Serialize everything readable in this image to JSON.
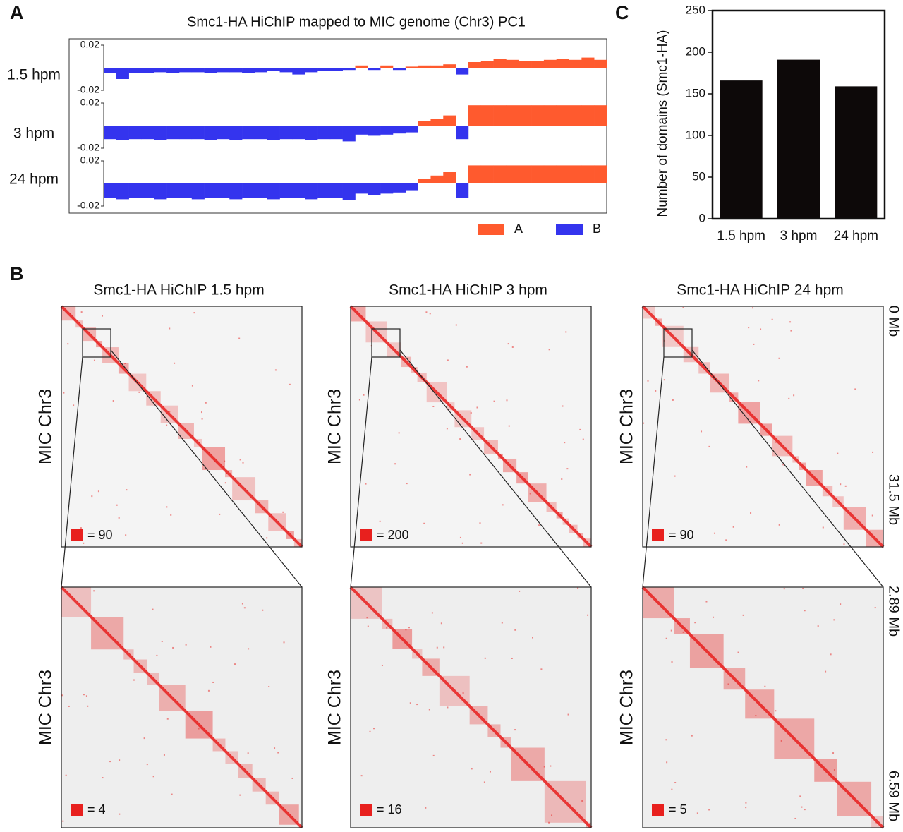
{
  "panel_labels": {
    "a": "A",
    "b": "B",
    "c": "C"
  },
  "chart_data": [
    {
      "type": "track",
      "title": "Smc1-HA HiChIP mapped to MIC genome (Chr3) PC1",
      "tracks": [
        {
          "name": "1.5 hpm",
          "values": [
            -0.005,
            -0.01,
            -0.005,
            -0.005,
            -0.004,
            -0.005,
            -0.004,
            -0.004,
            -0.005,
            -0.004,
            -0.004,
            -0.005,
            -0.004,
            -0.003,
            -0.004,
            -0.006,
            -0.004,
            -0.003,
            -0.003,
            -0.002,
            0.002,
            -0.002,
            0.002,
            -0.002,
            0.001,
            0.002,
            0.002,
            0.003,
            -0.006,
            0.005,
            0.006,
            0.008,
            0.007,
            0.006,
            0.006,
            0.007,
            0.008,
            0.007,
            0.009,
            0.007
          ]
        },
        {
          "name": "3 hpm",
          "values": [
            -0.012,
            -0.013,
            -0.012,
            -0.012,
            -0.013,
            -0.012,
            -0.012,
            -0.012,
            -0.013,
            -0.012,
            -0.013,
            -0.012,
            -0.012,
            -0.013,
            -0.012,
            -0.012,
            -0.013,
            -0.012,
            -0.012,
            -0.014,
            -0.008,
            -0.009,
            -0.008,
            -0.007,
            -0.006,
            0.004,
            0.006,
            0.009,
            -0.012,
            0.018,
            0.018,
            0.018,
            0.018,
            0.018,
            0.018,
            0.018,
            0.018,
            0.018,
            0.018,
            0.018
          ]
        },
        {
          "name": "24 hpm",
          "values": [
            -0.013,
            -0.014,
            -0.013,
            -0.013,
            -0.014,
            -0.013,
            -0.013,
            -0.014,
            -0.013,
            -0.013,
            -0.014,
            -0.013,
            -0.013,
            -0.014,
            -0.013,
            -0.013,
            -0.014,
            -0.013,
            -0.013,
            -0.015,
            -0.009,
            -0.01,
            -0.009,
            -0.008,
            -0.006,
            0.004,
            0.007,
            0.01,
            -0.013,
            0.016,
            0.016,
            0.016,
            0.016,
            0.016,
            0.016,
            0.016,
            0.016,
            0.016,
            0.016,
            0.016
          ]
        }
      ],
      "ylim": [
        -0.02,
        0.02
      ],
      "yticks": [
        -0.02,
        0.02
      ],
      "legend": [
        {
          "name": "A",
          "color": "#ff5a2e"
        },
        {
          "name": "B",
          "color": "#3434ee"
        }
      ]
    },
    {
      "type": "bar",
      "ylabel": "Number of domains (Smc1-HA)",
      "categories": [
        "1.5 hpm",
        "3 hpm",
        "24 hpm"
      ],
      "values": [
        166,
        191,
        159
      ],
      "color": "#0d0909",
      "ylim": [
        0,
        250
      ],
      "yticks": [
        0,
        50,
        100,
        150,
        200,
        250
      ]
    },
    {
      "type": "heatmap",
      "panels": [
        {
          "title": "Smc1-HA HiChIP 1.5 hpm",
          "ylabel": "MIC Chr3",
          "scale_label": "= 90"
        },
        {
          "title": "Smc1-HA HiChIP 3 hpm",
          "ylabel": "MIC Chr3",
          "scale_label": "= 200"
        },
        {
          "title": "Smc1-HA HiChIP 24 hpm",
          "ylabel": "MIC Chr3",
          "scale_label": "= 90"
        },
        {
          "ylabel": "MIC Chr3",
          "scale_label": "= 4"
        },
        {
          "ylabel": "MIC Chr3",
          "scale_label": "= 16"
        },
        {
          "ylabel": "MIC Chr3",
          "scale_label": "= 5"
        }
      ],
      "right_labels": [
        "0 Mb",
        "31.5 Mb",
        "2.89 Mb",
        "6.59 Mb"
      ],
      "color": "#e8201e"
    }
  ]
}
